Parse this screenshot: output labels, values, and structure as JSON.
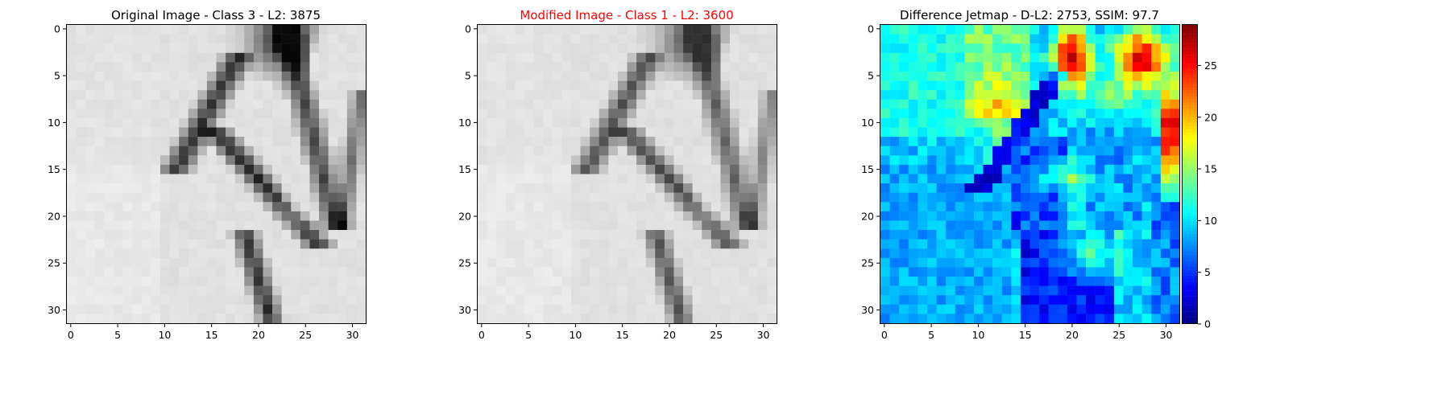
{
  "panels": [
    {
      "title": "Original Image - Class 3 - L2: 3875",
      "title_color": "#000000",
      "colormap": "gray",
      "xticks": [
        "0",
        "5",
        "10",
        "15",
        "20",
        "25",
        "30"
      ],
      "yticks": [
        "0",
        "5",
        "10",
        "15",
        "20",
        "25",
        "30"
      ]
    },
    {
      "title": "Modified Image - Class 1 - L2: 3600",
      "title_color": "#ff0000",
      "colormap": "gray",
      "xticks": [
        "0",
        "5",
        "10",
        "15",
        "20",
        "25",
        "30"
      ],
      "yticks": [
        "0",
        "5",
        "10",
        "15",
        "20",
        "25",
        "30"
      ]
    },
    {
      "title": "Difference Jetmap - D-L2: 2753, SSIM: 97.7",
      "title_color": "#000000",
      "colormap": "jet",
      "xticks": [
        "0",
        "5",
        "10",
        "15",
        "20",
        "25",
        "30"
      ],
      "yticks": [
        "0",
        "5",
        "10",
        "15",
        "20",
        "25",
        "30"
      ]
    }
  ],
  "colorbar": {
    "colormap": "jet",
    "range": [
      0,
      29
    ],
    "ticks": [
      "0",
      "5",
      "10",
      "15",
      "20",
      "25"
    ]
  },
  "image_grid": {
    "rows": 32,
    "cols": 32
  }
}
